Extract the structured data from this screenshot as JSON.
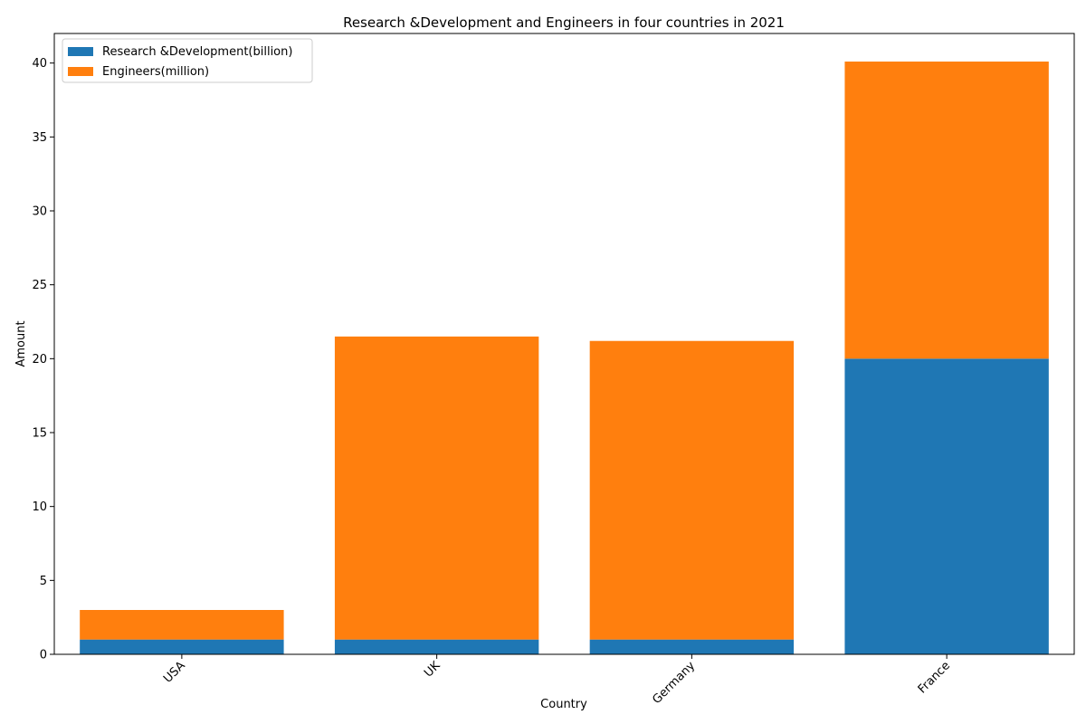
{
  "chart_data": {
    "type": "bar",
    "stacked": true,
    "title": "Research &Development and Engineers in four countries in 2021",
    "xlabel": "Country",
    "ylabel": "Amount",
    "categories": [
      "USA",
      "UK",
      "Germany",
      "France"
    ],
    "series": [
      {
        "name": "Research &Development(billion)",
        "values": [
          1,
          1,
          1,
          20
        ],
        "color": "#1f77b4"
      },
      {
        "name": "Engineers(million)",
        "values": [
          2,
          20.5,
          20.2,
          20.1
        ],
        "color": "#ff7f0e"
      }
    ],
    "ylim": [
      0,
      42
    ],
    "yticks": [
      0,
      5,
      10,
      15,
      20,
      25,
      30,
      35,
      40
    ],
    "grid": false,
    "legend_position": "top-left",
    "xtick_rotation": 45
  }
}
